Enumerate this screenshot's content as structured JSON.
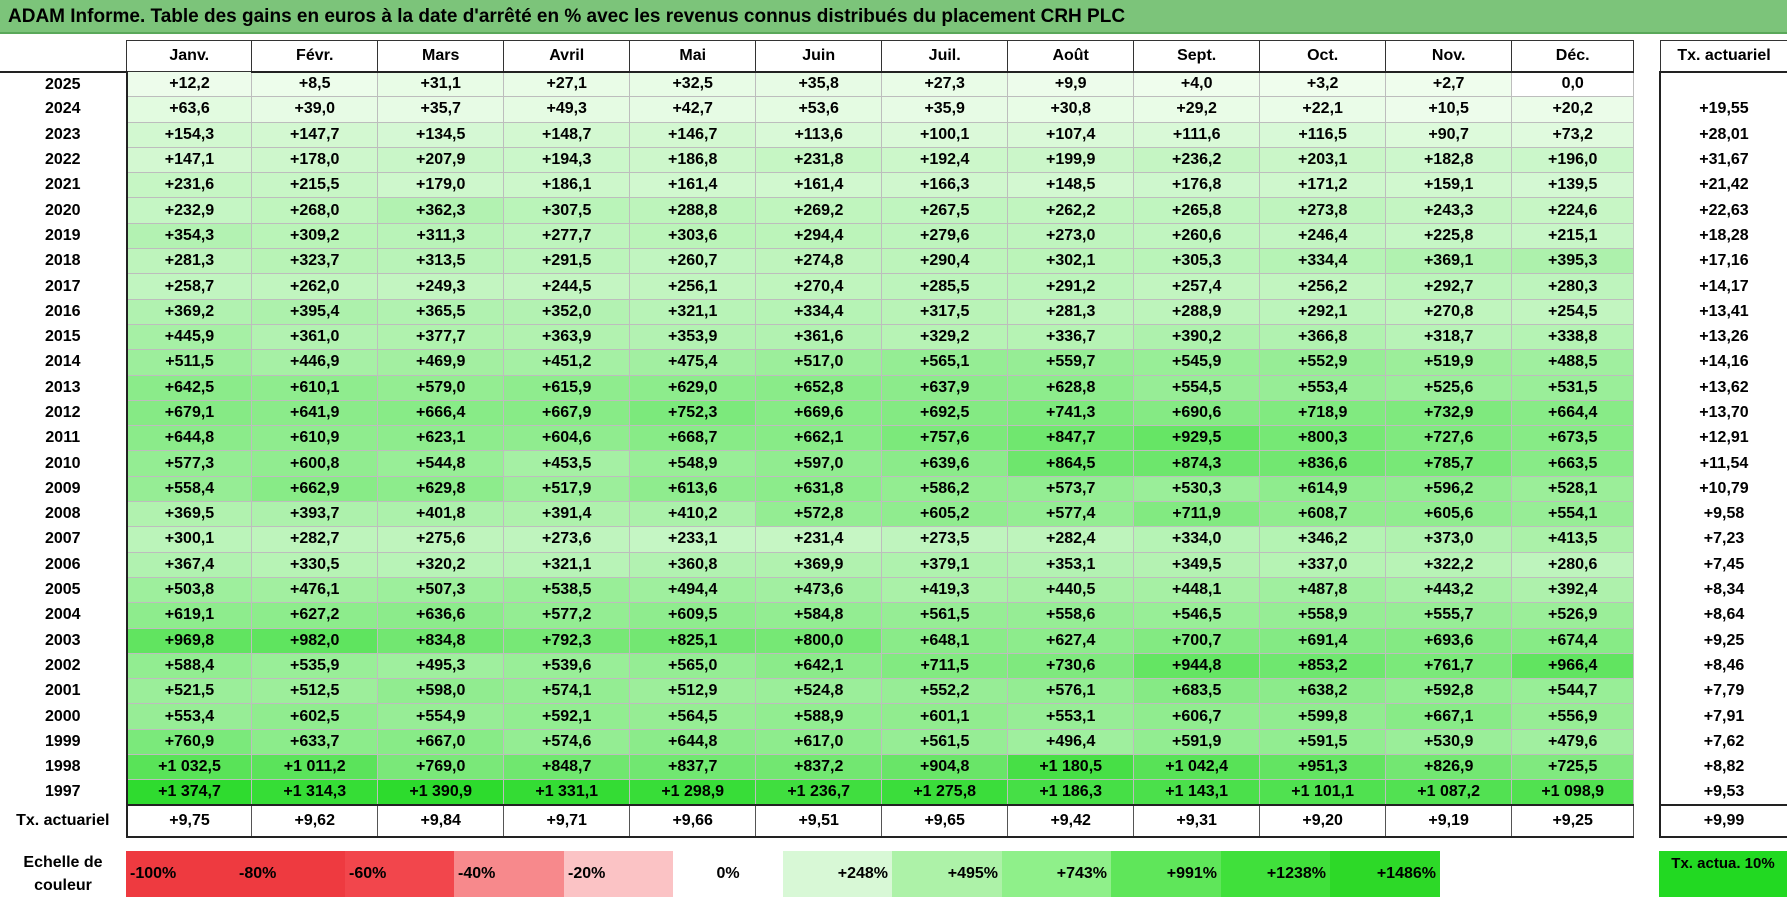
{
  "title": "ADAM Informe. Table des gains en euros à la date d'arrêté en % avec les revenus connus distribués du placement CRH PLC",
  "months": [
    "Janv.",
    "Févr.",
    "Mars",
    "Avril",
    "Mai",
    "Juin",
    "Juil.",
    "Août",
    "Sept.",
    "Oct.",
    "Nov.",
    "Déc."
  ],
  "side_header": "Tx. actuariel",
  "footer_label": "Tx. actuariel",
  "rows": [
    {
      "year": "2025",
      "values": [
        "+12,2",
        "+8,5",
        "+31,1",
        "+27,1",
        "+32,5",
        "+35,8",
        "+27,3",
        "+9,9",
        "+4,0",
        "+3,2",
        "+2,7",
        "0,0"
      ],
      "rate": ""
    },
    {
      "year": "2024",
      "values": [
        "+63,6",
        "+39,0",
        "+35,7",
        "+49,3",
        "+42,7",
        "+53,6",
        "+35,9",
        "+30,8",
        "+29,2",
        "+22,1",
        "+10,5",
        "+20,2"
      ],
      "rate": "+19,55"
    },
    {
      "year": "2023",
      "values": [
        "+154,3",
        "+147,7",
        "+134,5",
        "+148,7",
        "+146,7",
        "+113,6",
        "+100,1",
        "+107,4",
        "+111,6",
        "+116,5",
        "+90,7",
        "+73,2"
      ],
      "rate": "+28,01"
    },
    {
      "year": "2022",
      "values": [
        "+147,1",
        "+178,0",
        "+207,9",
        "+194,3",
        "+186,8",
        "+231,8",
        "+192,4",
        "+199,9",
        "+236,2",
        "+203,1",
        "+182,8",
        "+196,0"
      ],
      "rate": "+31,67"
    },
    {
      "year": "2021",
      "values": [
        "+231,6",
        "+215,5",
        "+179,0",
        "+186,1",
        "+161,4",
        "+161,4",
        "+166,3",
        "+148,5",
        "+176,8",
        "+171,2",
        "+159,1",
        "+139,5"
      ],
      "rate": "+21,42"
    },
    {
      "year": "2020",
      "values": [
        "+232,9",
        "+268,0",
        "+362,3",
        "+307,5",
        "+288,8",
        "+269,2",
        "+267,5",
        "+262,2",
        "+265,8",
        "+273,8",
        "+243,3",
        "+224,6"
      ],
      "rate": "+22,63"
    },
    {
      "year": "2019",
      "values": [
        "+354,3",
        "+309,2",
        "+311,3",
        "+277,7",
        "+303,6",
        "+294,4",
        "+279,6",
        "+273,0",
        "+260,6",
        "+246,4",
        "+225,8",
        "+215,1"
      ],
      "rate": "+18,28"
    },
    {
      "year": "2018",
      "values": [
        "+281,3",
        "+323,7",
        "+313,5",
        "+291,5",
        "+260,7",
        "+274,8",
        "+290,4",
        "+302,1",
        "+305,3",
        "+334,4",
        "+369,1",
        "+395,3"
      ],
      "rate": "+17,16"
    },
    {
      "year": "2017",
      "values": [
        "+258,7",
        "+262,0",
        "+249,3",
        "+244,5",
        "+256,1",
        "+270,4",
        "+285,5",
        "+291,2",
        "+257,4",
        "+256,2",
        "+292,7",
        "+280,3"
      ],
      "rate": "+14,17"
    },
    {
      "year": "2016",
      "values": [
        "+369,2",
        "+395,4",
        "+365,5",
        "+352,0",
        "+321,1",
        "+334,4",
        "+317,5",
        "+281,3",
        "+288,9",
        "+292,1",
        "+270,8",
        "+254,5"
      ],
      "rate": "+13,41"
    },
    {
      "year": "2015",
      "values": [
        "+445,9",
        "+361,0",
        "+377,7",
        "+363,9",
        "+353,9",
        "+361,6",
        "+329,2",
        "+336,7",
        "+390,2",
        "+366,8",
        "+318,7",
        "+338,8"
      ],
      "rate": "+13,26"
    },
    {
      "year": "2014",
      "values": [
        "+511,5",
        "+446,9",
        "+469,9",
        "+451,2",
        "+475,4",
        "+517,0",
        "+565,1",
        "+559,7",
        "+545,9",
        "+552,9",
        "+519,9",
        "+488,5"
      ],
      "rate": "+14,16"
    },
    {
      "year": "2013",
      "values": [
        "+642,5",
        "+610,1",
        "+579,0",
        "+615,9",
        "+629,0",
        "+652,8",
        "+637,9",
        "+628,8",
        "+554,5",
        "+553,4",
        "+525,6",
        "+531,5"
      ],
      "rate": "+13,62"
    },
    {
      "year": "2012",
      "values": [
        "+679,1",
        "+641,9",
        "+666,4",
        "+667,9",
        "+752,3",
        "+669,6",
        "+692,5",
        "+741,3",
        "+690,6",
        "+718,9",
        "+732,9",
        "+664,4"
      ],
      "rate": "+13,70"
    },
    {
      "year": "2011",
      "values": [
        "+644,8",
        "+610,9",
        "+623,1",
        "+604,6",
        "+668,7",
        "+662,1",
        "+757,6",
        "+847,7",
        "+929,5",
        "+800,3",
        "+727,6",
        "+673,5"
      ],
      "rate": "+12,91"
    },
    {
      "year": "2010",
      "values": [
        "+577,3",
        "+600,8",
        "+544,8",
        "+453,5",
        "+548,9",
        "+597,0",
        "+639,6",
        "+864,5",
        "+874,3",
        "+836,6",
        "+785,7",
        "+663,5"
      ],
      "rate": "+11,54"
    },
    {
      "year": "2009",
      "values": [
        "+558,4",
        "+662,9",
        "+629,8",
        "+517,9",
        "+613,6",
        "+631,8",
        "+586,2",
        "+573,7",
        "+530,3",
        "+614,9",
        "+596,2",
        "+528,1"
      ],
      "rate": "+10,79"
    },
    {
      "year": "2008",
      "values": [
        "+369,5",
        "+393,7",
        "+401,8",
        "+391,4",
        "+410,2",
        "+572,8",
        "+605,2",
        "+577,4",
        "+711,9",
        "+608,7",
        "+605,6",
        "+554,1"
      ],
      "rate": "+9,58"
    },
    {
      "year": "2007",
      "values": [
        "+300,1",
        "+282,7",
        "+275,6",
        "+273,6",
        "+233,1",
        "+231,4",
        "+273,5",
        "+282,4",
        "+334,0",
        "+346,2",
        "+373,0",
        "+413,5"
      ],
      "rate": "+7,23"
    },
    {
      "year": "2006",
      "values": [
        "+367,4",
        "+330,5",
        "+320,2",
        "+321,1",
        "+360,8",
        "+369,9",
        "+379,1",
        "+353,1",
        "+349,5",
        "+337,0",
        "+322,2",
        "+280,6"
      ],
      "rate": "+7,45"
    },
    {
      "year": "2005",
      "values": [
        "+503,8",
        "+476,1",
        "+507,3",
        "+538,5",
        "+494,4",
        "+473,6",
        "+419,3",
        "+440,5",
        "+448,1",
        "+487,8",
        "+443,2",
        "+392,4"
      ],
      "rate": "+8,34"
    },
    {
      "year": "2004",
      "values": [
        "+619,1",
        "+627,2",
        "+636,6",
        "+577,2",
        "+609,5",
        "+584,8",
        "+561,5",
        "+558,6",
        "+546,5",
        "+558,9",
        "+555,7",
        "+526,9"
      ],
      "rate": "+8,64"
    },
    {
      "year": "2003",
      "values": [
        "+969,8",
        "+982,0",
        "+834,8",
        "+792,3",
        "+825,1",
        "+800,0",
        "+648,1",
        "+627,4",
        "+700,7",
        "+691,4",
        "+693,6",
        "+674,4"
      ],
      "rate": "+9,25"
    },
    {
      "year": "2002",
      "values": [
        "+588,4",
        "+535,9",
        "+495,3",
        "+539,6",
        "+565,0",
        "+642,1",
        "+711,5",
        "+730,6",
        "+944,8",
        "+853,2",
        "+761,7",
        "+966,4"
      ],
      "rate": "+8,46"
    },
    {
      "year": "2001",
      "values": [
        "+521,5",
        "+512,5",
        "+598,0",
        "+574,1",
        "+512,9",
        "+524,8",
        "+552,2",
        "+576,1",
        "+683,5",
        "+638,2",
        "+592,8",
        "+544,7"
      ],
      "rate": "+7,79"
    },
    {
      "year": "2000",
      "values": [
        "+553,4",
        "+602,5",
        "+554,9",
        "+592,1",
        "+564,5",
        "+588,9",
        "+601,1",
        "+553,1",
        "+606,7",
        "+599,8",
        "+667,1",
        "+556,9"
      ],
      "rate": "+7,91"
    },
    {
      "year": "1999",
      "values": [
        "+760,9",
        "+633,7",
        "+667,0",
        "+574,6",
        "+644,8",
        "+617,0",
        "+561,5",
        "+496,4",
        "+591,9",
        "+591,5",
        "+530,9",
        "+479,6"
      ],
      "rate": "+7,62"
    },
    {
      "year": "1998",
      "values": [
        "+1 032,5",
        "+1 011,2",
        "+769,0",
        "+848,7",
        "+837,7",
        "+837,2",
        "+904,8",
        "+1 180,5",
        "+1 042,4",
        "+951,3",
        "+826,9",
        "+725,5"
      ],
      "rate": "+8,82"
    },
    {
      "year": "1997",
      "values": [
        "+1 374,7",
        "+1 314,3",
        "+1 390,9",
        "+1 331,1",
        "+1 298,9",
        "+1 236,7",
        "+1 275,8",
        "+1 186,3",
        "+1 143,1",
        "+1 101,1",
        "+1 087,2",
        "+1 098,9"
      ],
      "rate": "+9,53"
    }
  ],
  "footer_values": [
    "+9,75",
    "+9,62",
    "+9,84",
    "+9,71",
    "+9,66",
    "+9,51",
    "+9,65",
    "+9,42",
    "+9,31",
    "+9,20",
    "+9,19",
    "+9,25"
  ],
  "footer_rate": "+9,99",
  "legend": {
    "label": "Echelle de couleur",
    "cells": [
      {
        "text": "-100%",
        "color": "#ee3a40",
        "align": "left"
      },
      {
        "text": "-80%",
        "color": "#ee3a40",
        "align": "left"
      },
      {
        "text": "-60%",
        "color": "#f2464c",
        "align": "left"
      },
      {
        "text": "-40%",
        "color": "#f7898c",
        "align": "left"
      },
      {
        "text": "-20%",
        "color": "#fbc3c5",
        "align": "left"
      },
      {
        "text": "0%",
        "color": "#ffffff",
        "align": "center"
      },
      {
        "text": "+248%",
        "color": "#d8f8d6",
        "align": "right"
      },
      {
        "text": "+495%",
        "color": "#adf2a8",
        "align": "right"
      },
      {
        "text": "+743%",
        "color": "#8ff08a",
        "align": "right"
      },
      {
        "text": "+991%",
        "color": "#5fe65a",
        "align": "right"
      },
      {
        "text": "+1238%",
        "color": "#40e03b",
        "align": "right"
      },
      {
        "text": "+1486%",
        "color": "#2dd928",
        "align": "right"
      }
    ],
    "side_text": "Tx. actua. 10%",
    "side_color": "#22d922"
  }
}
